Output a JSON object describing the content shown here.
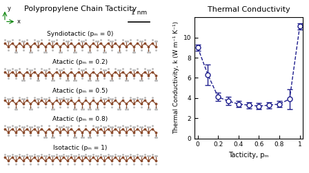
{
  "diagram": {
    "title": "Polypropylene Chain Tacticity",
    "scale_bar": "1 nm",
    "axes": [
      "x",
      "y"
    ],
    "chains": [
      {
        "label": "Syndiotactic (pₘ = 0)",
        "p_m": 0
      },
      {
        "label": "Atactic (pₘ = 0.2)",
        "p_m": 0.2
      },
      {
        "label": "Atactic (pₘ = 0.5)",
        "p_m": 0.5
      },
      {
        "label": "Atactic (pₘ = 0.8)",
        "p_m": 0.8
      },
      {
        "label": "Isotactic (pₘ = 1)",
        "p_m": 1
      }
    ]
  },
  "chart_data": {
    "type": "line",
    "title": "Thermal Conductivity",
    "x_label": "Tacticity, pₘ",
    "y_label": "Thermal Conductivity, k (W m⁻¹ K⁻¹)",
    "x": [
      0,
      0.1,
      0.2,
      0.3,
      0.4,
      0.5,
      0.6,
      0.7,
      0.8,
      0.9,
      1
    ],
    "values": [
      9.0,
      6.3,
      4.1,
      3.7,
      3.4,
      3.3,
      3.2,
      3.3,
      3.4,
      3.9,
      11.1
    ],
    "errors": [
      0.3,
      1.0,
      0.4,
      0.4,
      0.3,
      0.3,
      0.3,
      0.3,
      0.3,
      1.0,
      0.3
    ],
    "xlim": [
      -0.03,
      1.03
    ],
    "ylim": [
      0,
      12
    ],
    "xticks": [
      0,
      0.2,
      0.4,
      0.6,
      0.8,
      1
    ],
    "yticks": [
      0,
      2,
      4,
      6,
      8,
      10
    ],
    "color": "#1c1c8c",
    "marker": "o",
    "line_style": "dashed"
  }
}
